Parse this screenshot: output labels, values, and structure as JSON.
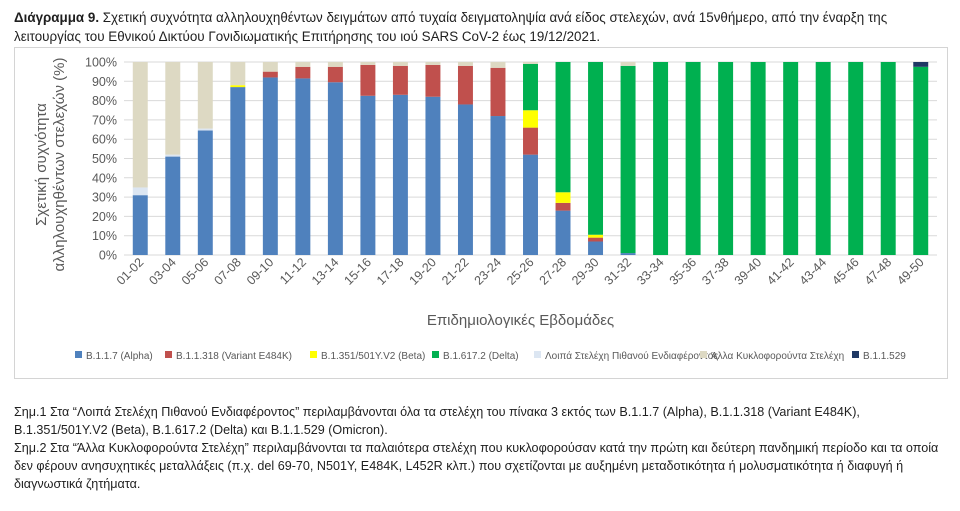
{
  "title": {
    "bold": "Διάγραμμα 9.",
    "text": " Σχετική συχνότητα αλληλουχηθέντων δειγμάτων από τυχαία δειγματοληψία ανά είδος στελεχών, ανά 15νθήμερο, από την έναρξη της λειτουργίας του Εθνικού Δικτύου Γονιδιωματικής Επιτήρησης του ιού SARS CoV-2 έως 19/12/2021."
  },
  "notes": [
    "Σημ.1 Στα “Λοιπά Στελέχη Πιθανού Ενδιαφέροντος” περιλαμβάνονται όλα τα στελέχη του πίνακα 3 εκτός των B.1.1.7 (Alpha), B.1.1.318 (Variant E484K), B.1.351/501Y.V2 (Beta), B.1.617.2 (Delta) και B.1.1.529 (Omicron).",
    "Σημ.2 Στα “Άλλα Κυκλοφορούντα Στελέχη” περιλαμβάνονται τα παλαιότερα στελέχη που κυκλοφορούσαν κατά την πρώτη και δεύτερη πανδημική περίοδο και τα οποία δεν φέρουν ανησυχητικές μεταλλάξεις (π.χ. del 69-70, N501Y, E484K, L452R κλπ.) που σχετίζονται με αυξημένη μεταδοτικότητα ή μολυσματικότητα ή διαφυγή ή διαγνωστικά ζητήματα."
  ],
  "chart_data": {
    "type": "bar",
    "stacked": true,
    "title": "",
    "xlabel": "Επιδημιολογικές Εβδομάδες",
    "ylabel": "Σχετική συχνότητα αλληλουχηθέντων στελεχών (%)",
    "ylim": [
      0,
      100
    ],
    "yticks": [
      "0%",
      "10%",
      "20%",
      "30%",
      "40%",
      "50%",
      "60%",
      "70%",
      "80%",
      "90%",
      "100%"
    ],
    "grid": true,
    "legend_position": "bottom",
    "categories": [
      "01-02",
      "03-04",
      "05-06",
      "07-08",
      "09-10",
      "11-12",
      "13-14",
      "15-16",
      "17-18",
      "19-20",
      "21-22",
      "23-24",
      "25-26",
      "27-28",
      "29-30",
      "31-32",
      "33-34",
      "35-36",
      "37-38",
      "39-40",
      "41-42",
      "43-44",
      "45-46",
      "47-48",
      "49-50"
    ],
    "series": [
      {
        "name": "B.1.1.7 (Alpha)",
        "color": "#4f81bd",
        "values": [
          31,
          51,
          64.5,
          87,
          92,
          91.5,
          89.5,
          82.5,
          83,
          82,
          78,
          72,
          52,
          23,
          7,
          1,
          0,
          0,
          0,
          0,
          0,
          0,
          0,
          0,
          0
        ]
      },
      {
        "name": "B.1.1.318 (Variant E484K)",
        "color": "#c0504d",
        "values": [
          0,
          0,
          0,
          0,
          3,
          6,
          8,
          16,
          15,
          16.5,
          20,
          25,
          14,
          4,
          2,
          0,
          0,
          0,
          0,
          0,
          0,
          0,
          0,
          0,
          0
        ]
      },
      {
        "name": "B.1.351/501Y.V2 (Beta)",
        "color": "#ffff00",
        "values": [
          0,
          0,
          0,
          1,
          0,
          0,
          0,
          0,
          0,
          0,
          0,
          0,
          9,
          5.5,
          1.5,
          0,
          0,
          0,
          0,
          0,
          0,
          0,
          0,
          0,
          0
        ]
      },
      {
        "name": "B.1.617.2 (Delta)",
        "color": "#00b050",
        "values": [
          0,
          0,
          0,
          0,
          0,
          0,
          0,
          0,
          0,
          0,
          0,
          0,
          24,
          67.5,
          89.5,
          97,
          100,
          100,
          100,
          100,
          100,
          100,
          100,
          100,
          97.5
        ]
      },
      {
        "name": "Λοιπά Στελέχη Πιθανού Ενδιαφέροντος",
        "color": "#dce6f2",
        "values": [
          4,
          1,
          1,
          0,
          0,
          0,
          0,
          0,
          0,
          0,
          0,
          0,
          0,
          0,
          0,
          0,
          0,
          0,
          0,
          0,
          0,
          0,
          0,
          0,
          0
        ]
      },
      {
        "name": "Άλλα Κυκλοφορούντα Στελέχη",
        "color": "#ddd9c3",
        "values": [
          65,
          48,
          34.5,
          12,
          5,
          2.5,
          2.5,
          1.5,
          2,
          1.5,
          2,
          3,
          1,
          0,
          0,
          2,
          0,
          0,
          0,
          0,
          0,
          0,
          0,
          0,
          0
        ]
      },
      {
        "name": "B.1.1.529",
        "color": "#1f3864",
        "values": [
          0,
          0,
          0,
          0,
          0,
          0,
          0,
          0,
          0,
          0,
          0,
          0,
          0,
          0,
          0,
          0,
          0,
          0,
          0,
          0,
          0,
          0,
          0,
          0,
          2.5
        ]
      }
    ]
  }
}
